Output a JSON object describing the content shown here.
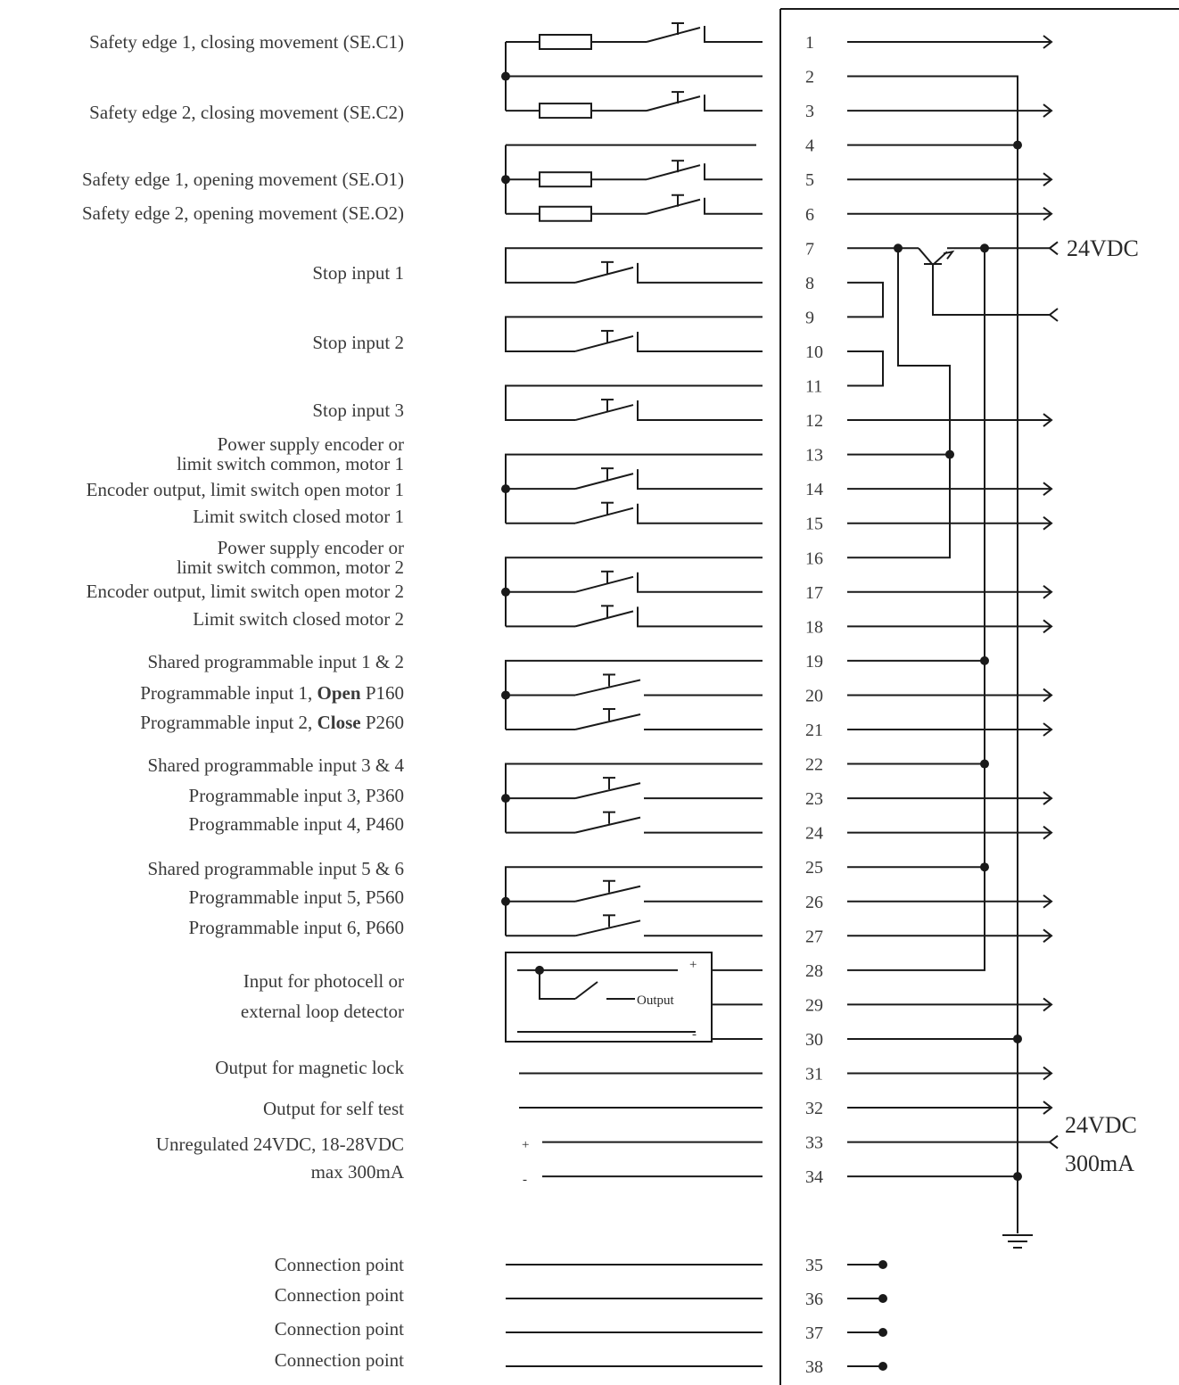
{
  "labels": [
    {
      "id": "se-c1",
      "lines": [
        "Safety edge 1, closing movement (SE.C1)"
      ]
    },
    {
      "id": "se-c2",
      "lines": [
        "Safety edge 2, closing movement (SE.C2)"
      ]
    },
    {
      "id": "se-o1",
      "lines": [
        "Safety edge 1, opening movement (SE.O1)"
      ]
    },
    {
      "id": "se-o2",
      "lines": [
        "Safety edge 2, opening movement (SE.O2)"
      ]
    },
    {
      "id": "stop1",
      "lines": [
        "Stop input 1"
      ]
    },
    {
      "id": "stop2",
      "lines": [
        "Stop input 2"
      ]
    },
    {
      "id": "stop3",
      "lines": [
        "Stop input 3"
      ]
    },
    {
      "id": "psu-m1",
      "lines": [
        "Power supply encoder or",
        "limit switch common, motor 1"
      ]
    },
    {
      "id": "enc-m1",
      "lines": [
        "Encoder output, limit switch open motor 1"
      ]
    },
    {
      "id": "lsc-m1",
      "lines": [
        "Limit switch closed motor 1"
      ]
    },
    {
      "id": "psu-m2",
      "lines": [
        "Power supply encoder or",
        "limit switch common, motor 2"
      ]
    },
    {
      "id": "enc-m2",
      "lines": [
        "Encoder output, limit switch open motor 2"
      ]
    },
    {
      "id": "lsc-m2",
      "lines": [
        "Limit switch closed motor 2"
      ]
    },
    {
      "id": "shared12",
      "lines": [
        "Shared programmable input 1 & 2"
      ]
    },
    {
      "id": "prog1",
      "lines": [
        "Programmable input 1, ",
        "Open",
        " P160"
      ]
    },
    {
      "id": "prog2",
      "lines": [
        "Programmable input 2, ",
        "Close",
        " P260"
      ]
    },
    {
      "id": "shared34",
      "lines": [
        "Shared programmable input 3 & 4"
      ]
    },
    {
      "id": "prog3",
      "lines": [
        "Programmable input 3, P360"
      ]
    },
    {
      "id": "prog4",
      "lines": [
        "Programmable input 4, P460"
      ]
    },
    {
      "id": "shared56",
      "lines": [
        "Shared programmable input 5 & 6"
      ]
    },
    {
      "id": "prog5",
      "lines": [
        "Programmable input 5, P560"
      ]
    },
    {
      "id": "prog6",
      "lines": [
        "Programmable input 6, P660"
      ]
    },
    {
      "id": "photocell",
      "lines": [
        "Input for photocell or",
        "external loop detector"
      ]
    },
    {
      "id": "maglock",
      "lines": [
        "Output for magnetic lock"
      ]
    },
    {
      "id": "selftest",
      "lines": [
        "Output for self  test"
      ]
    },
    {
      "id": "unreg",
      "lines": [
        "Unregulated 24VDC, 18-28VDC",
        "max 300mA"
      ]
    },
    {
      "id": "cp1",
      "lines": [
        "Connection point"
      ]
    },
    {
      "id": "cp2",
      "lines": [
        "Connection point"
      ]
    },
    {
      "id": "cp3",
      "lines": [
        "Connection point"
      ]
    },
    {
      "id": "cp4",
      "lines": [
        "Connection point"
      ]
    }
  ],
  "terminals": [
    "1",
    "2",
    "3",
    "4",
    "5",
    "6",
    "7",
    "8",
    "9",
    "10",
    "11",
    "12",
    "13",
    "14",
    "15",
    "16",
    "17",
    "18",
    "19",
    "20",
    "21",
    "22",
    "23",
    "24",
    "25",
    "26",
    "27",
    "28",
    "29",
    "30",
    "31",
    "32",
    "33",
    "34",
    "35",
    "36",
    "37",
    "38"
  ],
  "supply_top": "24VDC",
  "supply_bottom": [
    "24VDC",
    "300mA"
  ],
  "photocell_plus": "+",
  "photocell_minus": "-",
  "photocell_output": "Output",
  "psu_plus": "+",
  "psu_minus": "-"
}
